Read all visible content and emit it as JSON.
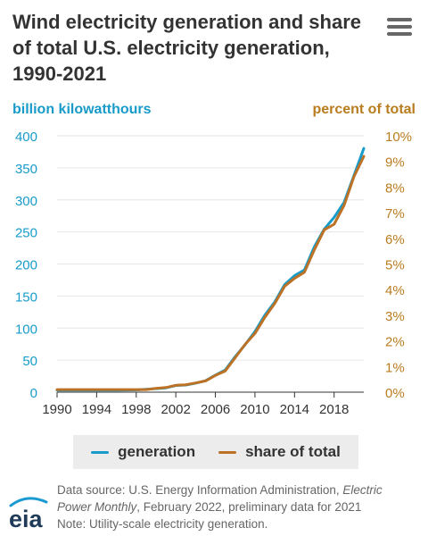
{
  "title": "Wind electricity generation and share of total U.S. electricity generation, 1990-2021",
  "menu": {
    "icon": "hamburger-menu-icon"
  },
  "colors": {
    "generation": "#189bc9",
    "share": "#bd7124",
    "left_axis": "#189bc9",
    "right_axis": "#b97c1f"
  },
  "chart_data": {
    "type": "line",
    "title": "Wind electricity generation and share of total U.S. electricity generation, 1990-2021",
    "left_axis_label": "billion kilowatthours",
    "right_axis_label": "percent of total",
    "x": [
      1990,
      1991,
      1992,
      1993,
      1994,
      1995,
      1996,
      1997,
      1998,
      1999,
      2000,
      2001,
      2002,
      2003,
      2004,
      2005,
      2006,
      2007,
      2008,
      2009,
      2010,
      2011,
      2012,
      2013,
      2014,
      2015,
      2016,
      2017,
      2018,
      2019,
      2020,
      2021
    ],
    "x_ticks": [
      "1990",
      "1994",
      "1998",
      "2002",
      "2006",
      "2010",
      "2014",
      "2018"
    ],
    "xlim": [
      1990,
      2021
    ],
    "left_ticks": [
      "0",
      "50",
      "100",
      "150",
      "200",
      "250",
      "300",
      "350",
      "400"
    ],
    "right_ticks": [
      "0%",
      "1%",
      "2%",
      "3%",
      "4%",
      "5%",
      "6%",
      "7%",
      "8%",
      "9%",
      "10%"
    ],
    "ylim_left": [
      0,
      400
    ],
    "ylim_right": [
      0,
      10
    ],
    "grid": "horizontal",
    "series": [
      {
        "name": "generation",
        "axis": "left",
        "unit": "billion kilowatthours",
        "values": [
          3,
          3,
          3,
          3,
          3.4,
          3.2,
          3.2,
          3.3,
          3.5,
          4.5,
          5.6,
          6.7,
          10.4,
          11.2,
          14.1,
          17.8,
          26.6,
          34.5,
          55.4,
          73.9,
          94.7,
          120.2,
          140.8,
          167.8,
          181.7,
          190.7,
          226.9,
          254.3,
          272.7,
          295.9,
          337.9,
          380.3
        ]
      },
      {
        "name": "share of total",
        "axis": "right",
        "unit": "percent",
        "values": [
          0.1,
          0.1,
          0.1,
          0.1,
          0.1,
          0.1,
          0.1,
          0.1,
          0.1,
          0.1,
          0.15,
          0.18,
          0.27,
          0.29,
          0.36,
          0.44,
          0.65,
          0.83,
          1.34,
          1.86,
          2.29,
          2.92,
          3.46,
          4.13,
          4.44,
          4.68,
          5.55,
          6.33,
          6.55,
          7.28,
          8.4,
          9.2
        ]
      }
    ],
    "legend": {
      "placement": "bottom",
      "entries": [
        "generation",
        "share of total"
      ]
    }
  },
  "legend": {
    "generation": "generation",
    "share": "share of total"
  },
  "footer": {
    "source_prefix": "Data source: U.S. Energy Information Administration, ",
    "source_pub": "Electric Power Monthly",
    "source_suffix": ", February 2022, preliminary data for 2021",
    "note": "Note: Utility-scale electricity generation."
  },
  "logo": {
    "text": "eia",
    "icon": "eia-logo-icon"
  }
}
